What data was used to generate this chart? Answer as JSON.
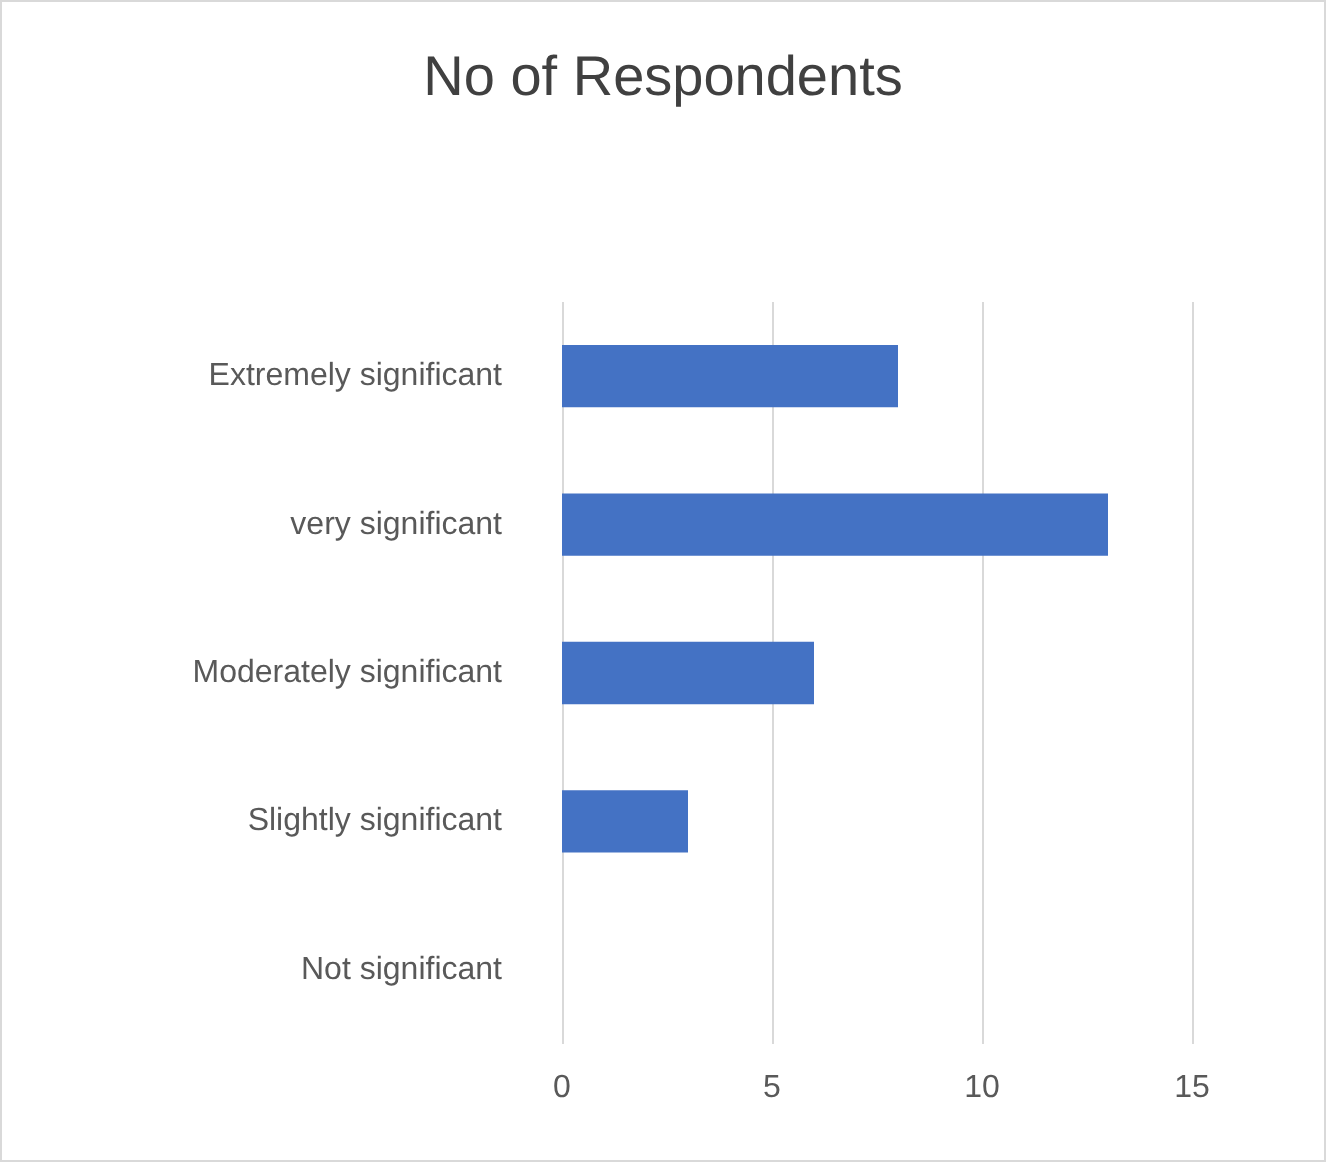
{
  "chart_data": {
    "type": "bar",
    "orientation": "horizontal",
    "title": "No of Respondents",
    "categories": [
      "Extremely significant",
      "very significant",
      "Moderately significant",
      "Slightly significant",
      "Not significant"
    ],
    "values": [
      8,
      13,
      6,
      3,
      0
    ],
    "color": "#4472c4",
    "xlim": [
      0,
      15
    ],
    "xticks": [
      0,
      5,
      10,
      15
    ],
    "grid": "x"
  }
}
